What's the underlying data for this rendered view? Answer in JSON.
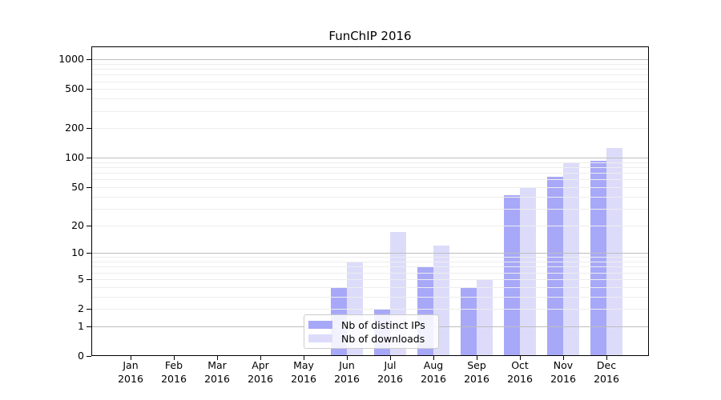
{
  "title": "FunChIP 2016",
  "chart_data": {
    "type": "bar",
    "title": "FunChIP 2016",
    "categories": [
      "Jan",
      "Feb",
      "Mar",
      "Apr",
      "May",
      "Jun",
      "Jul",
      "Aug",
      "Sep",
      "Oct",
      "Nov",
      "Dec"
    ],
    "x_tick_year": "2016",
    "series": [
      {
        "name": "Nb of distinct IPs",
        "color": "#a8a8f8",
        "values": [
          0,
          0,
          0,
          0,
          0,
          4,
          2,
          7,
          4,
          41,
          64,
          94
        ]
      },
      {
        "name": "Nb of downloads",
        "color": "#dcdcfa",
        "values": [
          0,
          0,
          0,
          0,
          0,
          8,
          17,
          12,
          5,
          50,
          88,
          127
        ]
      }
    ],
    "y_ticks": [
      0,
      1,
      2,
      5,
      10,
      20,
      50,
      100,
      200,
      500,
      1000
    ],
    "y_scale": "log1p",
    "ylim": [
      0,
      1350
    ],
    "grid": true,
    "legend_position": "inside-bottom-center",
    "colors": {
      "major_grid": "#bdbdbd",
      "minor_grid": "#ededed",
      "spine": "#000000",
      "background": "#ffffff"
    }
  }
}
